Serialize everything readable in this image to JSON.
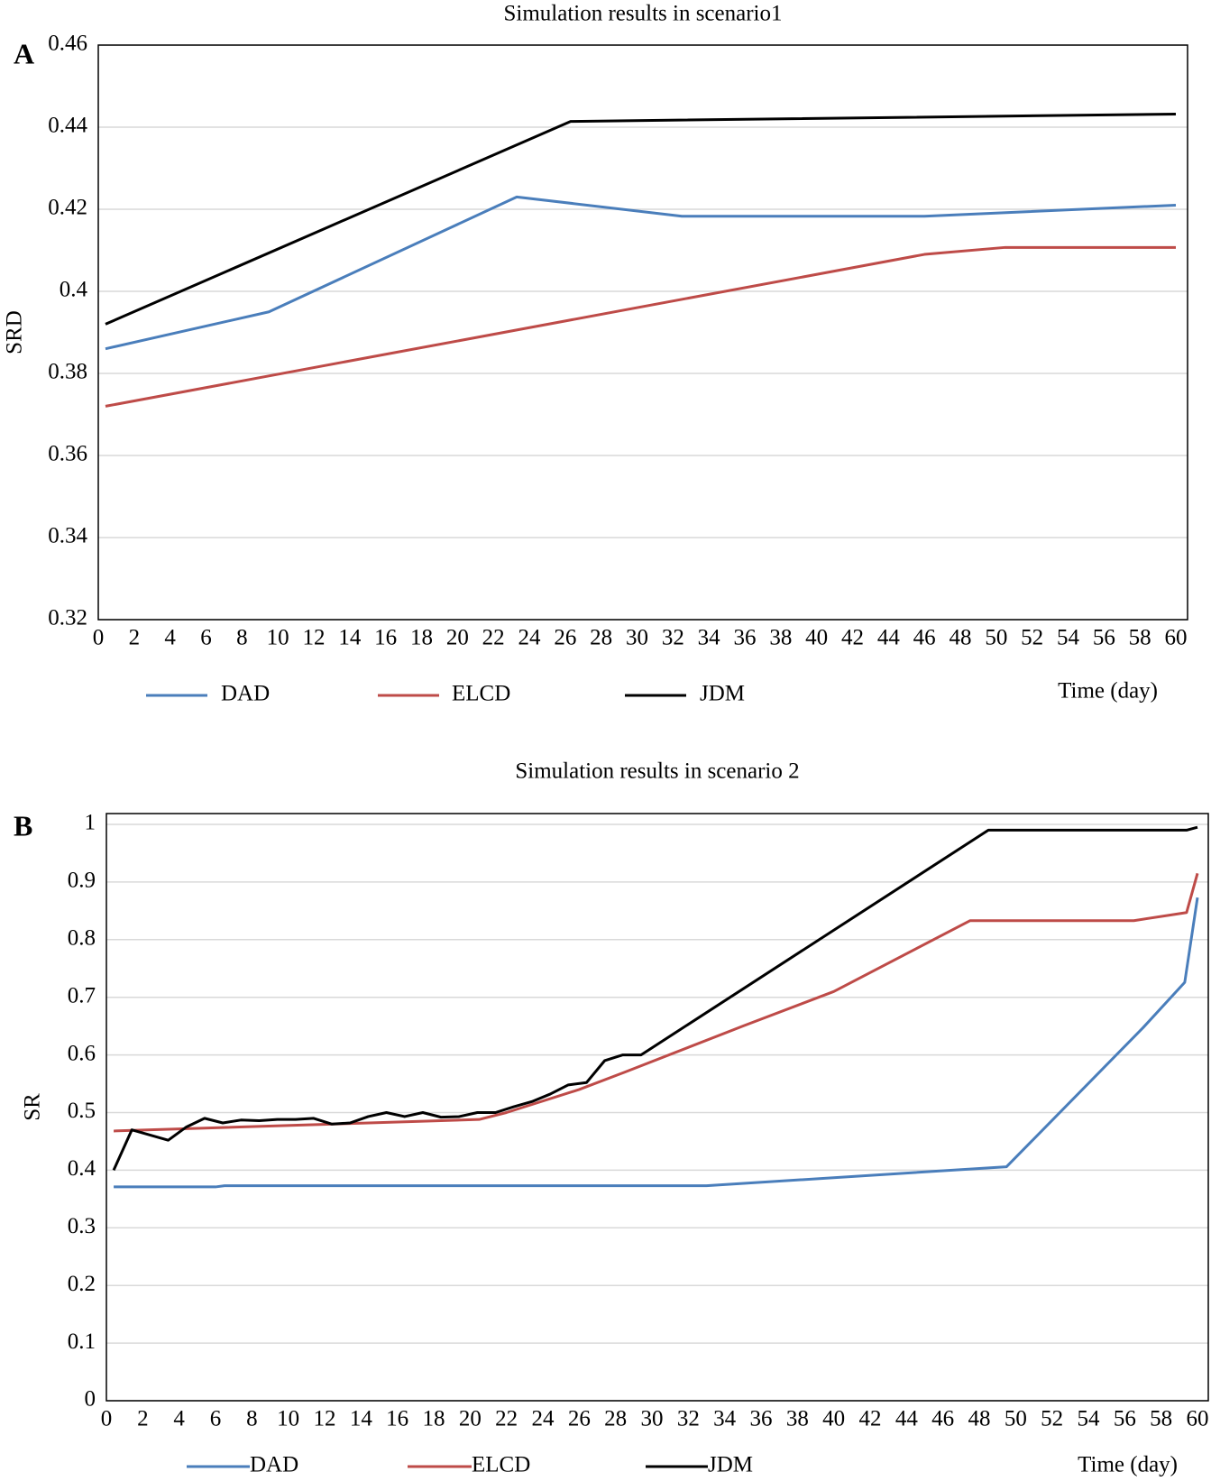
{
  "chart_data": [
    {
      "type": "line",
      "panel_label": "A",
      "title": "Simulation results in scenario1",
      "y_label": "SRD",
      "x_label": "Time (day)",
      "xlim": [
        0,
        60
      ],
      "xticks": [
        0,
        2,
        4,
        6,
        8,
        10,
        12,
        14,
        16,
        18,
        20,
        22,
        24,
        26,
        28,
        30,
        32,
        34,
        36,
        38,
        40,
        42,
        44,
        46,
        48,
        50,
        52,
        54,
        56,
        58,
        60
      ],
      "ylim": [
        0.32,
        0.46
      ],
      "yticks": [
        0.32,
        0.34,
        0.36,
        0.38,
        0.4,
        0.42,
        0.44,
        0.46
      ],
      "grid": true,
      "series": [
        {
          "name": "DAD",
          "color": "#4a7ebb",
          "x": [
            0.4,
            9.5,
            23.3,
            32.5,
            46,
            60
          ],
          "values": [
            0.386,
            0.395,
            0.423,
            0.4183,
            0.4183,
            0.421
          ]
        },
        {
          "name": "ELCD",
          "color": "#be4b48",
          "x": [
            0.4,
            46,
            50.5,
            60
          ],
          "values": [
            0.372,
            0.409,
            0.4107,
            0.4107
          ]
        },
        {
          "name": "JDM",
          "color": "#000000",
          "x": [
            0.4,
            26.3,
            60
          ],
          "values": [
            0.392,
            0.4414,
            0.4432
          ]
        }
      ]
    },
    {
      "type": "line",
      "panel_label": "B",
      "title": "Simulation results in scenario 2",
      "y_label": "SR",
      "x_label": "Time (day)",
      "xlim": [
        0,
        60
      ],
      "xticks": [
        0,
        2,
        4,
        6,
        8,
        10,
        12,
        14,
        16,
        18,
        20,
        22,
        24,
        26,
        28,
        30,
        32,
        34,
        36,
        38,
        40,
        42,
        44,
        46,
        48,
        50,
        52,
        54,
        56,
        58,
        60
      ],
      "ylim": [
        0,
        1
      ],
      "yticks": [
        0,
        0.1,
        0.2,
        0.3,
        0.4,
        0.5,
        0.6,
        0.7,
        0.8,
        0.9,
        1
      ],
      "grid": true,
      "series": [
        {
          "name": "DAD",
          "color": "#4a7ebb",
          "x": [
            0.4,
            6,
            6.5,
            33,
            49.5,
            57,
            59.3,
            60
          ],
          "values": [
            0.371,
            0.371,
            0.373,
            0.373,
            0.406,
            0.647,
            0.726,
            0.873
          ]
        },
        {
          "name": "ELCD",
          "color": "#be4b48",
          "x": [
            0.4,
            20.5,
            22,
            26,
            28.5,
            35,
            40,
            47.5,
            56.5,
            59.4,
            60
          ],
          "values": [
            0.468,
            0.488,
            0.5,
            0.54,
            0.57,
            0.65,
            0.71,
            0.833,
            0.833,
            0.847,
            0.915
          ]
        },
        {
          "name": "JDM",
          "color": "#000000",
          "x": [
            0.4,
            1.4,
            3.4,
            4.4,
            5.4,
            6.4,
            7.4,
            8.4,
            9.4,
            10.4,
            11.4,
            12.4,
            13.4,
            14.4,
            15.4,
            16.4,
            17.4,
            18.4,
            19.4,
            20.4,
            21.4,
            22.4,
            23.4,
            24.4,
            25.4,
            26.4,
            27.4,
            28.4,
            29.4,
            48.5,
            59.4,
            60
          ],
          "values": [
            0.4,
            0.47,
            0.452,
            0.475,
            0.49,
            0.482,
            0.487,
            0.486,
            0.488,
            0.488,
            0.49,
            0.48,
            0.482,
            0.493,
            0.5,
            0.493,
            0.5,
            0.492,
            0.493,
            0.5,
            0.5,
            0.51,
            0.519,
            0.532,
            0.548,
            0.552,
            0.59,
            0.6,
            0.6,
            0.99,
            0.99,
            0.995
          ]
        }
      ]
    }
  ]
}
